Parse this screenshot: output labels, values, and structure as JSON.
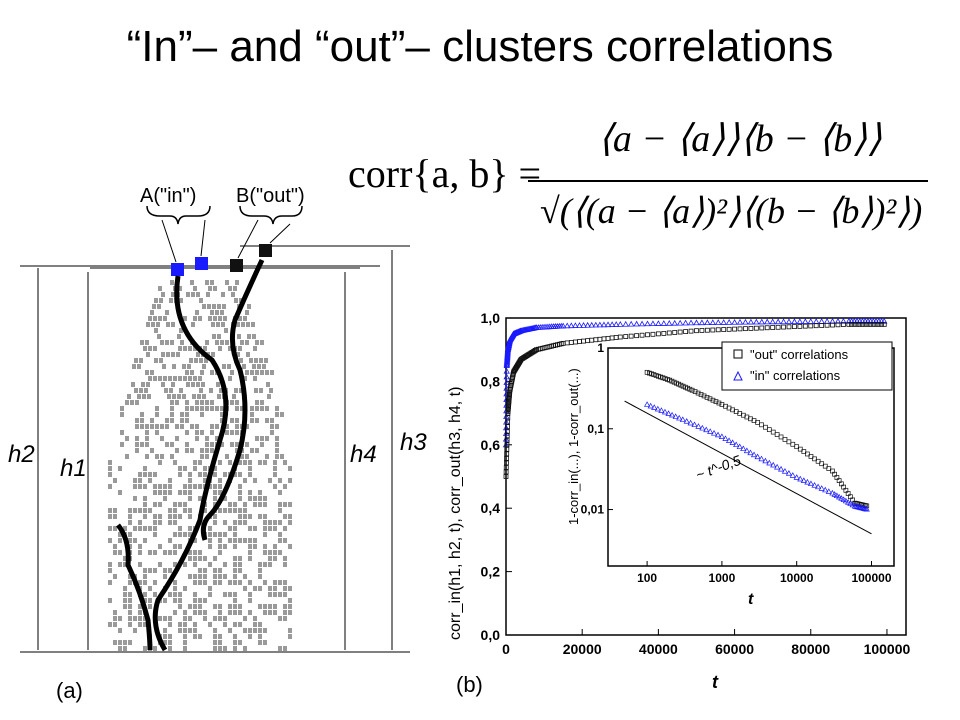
{
  "title": "“In”– and “out”– clusters correlations",
  "formula": {
    "lhs": "corr{a, b} =",
    "numerator": "⟨a − ⟨a⟩⟩⟨b − ⟨b⟩⟩",
    "denominator": "√(⟨(a − ⟨a⟩)²⟩⟨(b − ⟨b⟩)²⟩)"
  },
  "panel_a": {
    "label": "(a)",
    "cluster_A": "A(\"in\")",
    "cluster_B": "B(\"out\")",
    "heights": [
      "h2",
      "h1",
      "h4",
      "h3"
    ],
    "colors": {
      "in": "#1a1aff",
      "out": "#111111",
      "cluster": "#9a9a9a"
    }
  },
  "panel_b": {
    "label": "(b)",
    "xlabel": "t",
    "ylabel": "corr_in(h1, h2, t), corr_out(h3, h4, t)",
    "ylabel_pre": "corr",
    "ylabel_mid": "( h",
    "ylabel_rest": ", h",
    "xticks": [
      "0",
      "20000",
      "40000",
      "60000",
      "80000",
      "100000"
    ],
    "yticks": [
      "0,0",
      "0,2",
      "0,4",
      "0,6",
      "0,8",
      "1,0"
    ],
    "inset": {
      "legend": [
        "\"out\" correlations",
        "\"in\" correlations"
      ],
      "xticks": [
        "100",
        "1000",
        "10000",
        "100000"
      ],
      "yticks": [
        "1",
        "0,1",
        "0,01"
      ],
      "xlabel": "t",
      "ylabel": "1-corr_in(...), 1-corr_out(...)",
      "annotation": "~ t^-0,5"
    }
  },
  "chart_data": [
    {
      "type": "scatter",
      "title": "",
      "xlabel": "t",
      "ylabel": "corr_in(h1, h2, t), corr_out(h3, h4, t)",
      "xlim": [
        0,
        105000
      ],
      "ylim": [
        0,
        1.0
      ],
      "series": [
        {
          "name": "\"in\" correlations",
          "color": "#1a1aff",
          "x": [
            0,
            200,
            500,
            1000,
            2000,
            4000,
            8000,
            15000,
            30000,
            50000,
            70000,
            90000,
            100000
          ],
          "y": [
            0.6,
            0.85,
            0.9,
            0.93,
            0.95,
            0.96,
            0.97,
            0.975,
            0.98,
            0.985,
            0.988,
            0.99,
            0.99
          ]
        },
        {
          "name": "\"out\" correlations",
          "color": "#111111",
          "x": [
            0,
            500,
            1000,
            2000,
            4000,
            8000,
            15000,
            30000,
            50000,
            70000,
            90000,
            100000
          ],
          "y": [
            0.5,
            0.7,
            0.77,
            0.83,
            0.87,
            0.9,
            0.92,
            0.94,
            0.96,
            0.97,
            0.98,
            0.98
          ]
        }
      ]
    },
    {
      "type": "scatter",
      "title": "",
      "xlabel": "t",
      "ylabel": "1-corr_in(...), 1-corr_out(...)",
      "xscale": "log",
      "yscale": "log",
      "xlim": [
        30,
        200000
      ],
      "ylim": [
        0.002,
        1.0
      ],
      "series": [
        {
          "name": "\"out\" correlations",
          "color": "#111111",
          "x": [
            100,
            200,
            400,
            1000,
            3000,
            10000,
            30000,
            60000,
            90000
          ],
          "y": [
            0.5,
            0.4,
            0.3,
            0.2,
            0.12,
            0.06,
            0.03,
            0.012,
            0.011
          ]
        },
        {
          "name": "\"in\" correlations",
          "color": "#1a1aff",
          "x": [
            100,
            300,
            1000,
            3000,
            10000,
            30000,
            60000,
            90000
          ],
          "y": [
            0.2,
            0.13,
            0.08,
            0.045,
            0.025,
            0.016,
            0.011,
            0.01
          ]
        },
        {
          "name": "",
          "color": "#000000",
          "x": [
            50,
            100000
          ],
          "y": [
            0.22,
            0.005
          ]
        }
      ]
    }
  ]
}
